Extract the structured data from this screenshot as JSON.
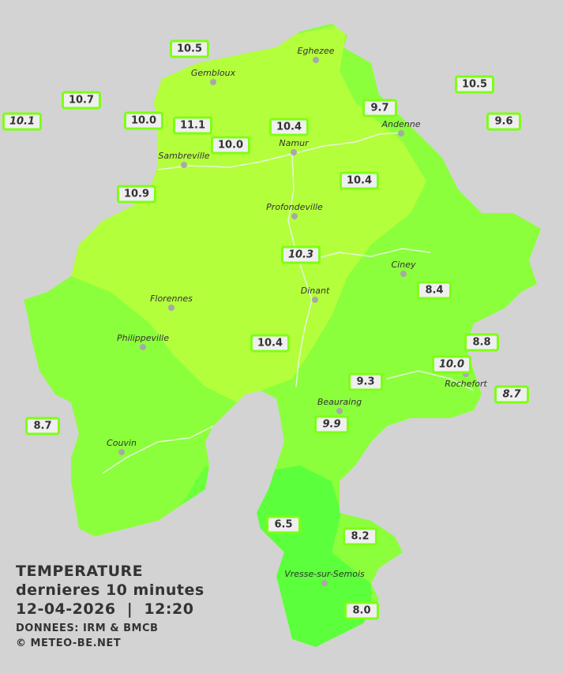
{
  "legend": {
    "title": "TEMPERATURE",
    "subtitle": "dernieres 10 minutes",
    "datetime": "12-04-2026  |  12:20",
    "source": "DONNEES: IRM & BMCB",
    "copyright": "© METEO-BE.NET"
  },
  "colors": {
    "background": "#d3d3d3",
    "zone_warm": "#b4ff3c",
    "zone_mid": "#8cff3c",
    "zone_cool": "#5cff3c",
    "station_border": "#7dff14"
  },
  "cities": [
    "Eghezee",
    "Gembloux",
    "Andenne",
    "Namur",
    "Sambreville",
    "Profondeville",
    "Ciney",
    "Dinant",
    "Florennes",
    "Philippeville",
    "Rochefort",
    "Beauraing",
    "Couvin",
    "Vresse-sur-Semois"
  ],
  "stations": [
    {
      "value": "10.5",
      "italic": false
    },
    {
      "value": "10.7",
      "italic": false
    },
    {
      "value": "10.1",
      "italic": true
    },
    {
      "value": "10.0",
      "italic": false
    },
    {
      "value": "11.1",
      "italic": false
    },
    {
      "value": "10.0",
      "italic": false
    },
    {
      "value": "10.4",
      "italic": false
    },
    {
      "value": "9.7",
      "italic": false
    },
    {
      "value": "10.5",
      "italic": false
    },
    {
      "value": "9.6",
      "italic": false
    },
    {
      "value": "10.9",
      "italic": false
    },
    {
      "value": "10.4",
      "italic": false
    },
    {
      "value": "10.3",
      "italic": true
    },
    {
      "value": "8.4",
      "italic": false
    },
    {
      "value": "10.4",
      "italic": false
    },
    {
      "value": "8.8",
      "italic": false
    },
    {
      "value": "10.0",
      "italic": true
    },
    {
      "value": "8.7",
      "italic": true
    },
    {
      "value": "9.3",
      "italic": false
    },
    {
      "value": "9.9",
      "italic": true
    },
    {
      "value": "8.7",
      "italic": false
    },
    {
      "value": "6.5",
      "italic": false
    },
    {
      "value": "8.2",
      "italic": false
    },
    {
      "value": "8.0",
      "italic": false
    }
  ]
}
